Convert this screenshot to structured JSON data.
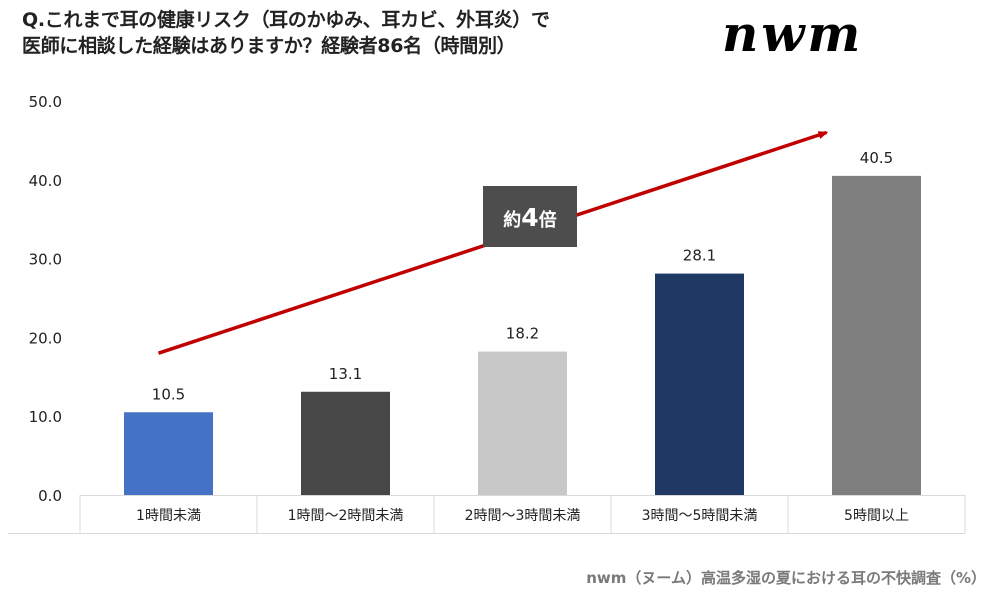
{
  "header": {
    "title_line1": "Q.これまで耳の健康リスク（耳のかゆみ、耳カビ、外耳炎）で",
    "title_line2": "医師に相談した経験はありますか？経験者86名（時間別）",
    "logo": "nwm"
  },
  "footer": {
    "source": "nwm（ヌーム）高温多湿の夏における耳の不快調査（%）"
  },
  "chart_data": {
    "type": "bar",
    "title": "Q.これまで耳の健康リスク（耳のかゆみ、耳カビ、外耳炎）で医師に相談した経験はありますか？経験者86名（時間別）",
    "xlabel": "",
    "ylabel": "",
    "unit": "%",
    "categories": [
      "1時間未満",
      "1時間〜2時間未満",
      "2時間〜3時間未満",
      "3時間〜5時間未満",
      "5時間以上"
    ],
    "values": [
      10.5,
      13.1,
      18.2,
      28.1,
      40.5
    ],
    "value_labels": [
      "10.5",
      "13.1",
      "18.2",
      "28.1",
      "40.5"
    ],
    "bar_colors": [
      "#4472c4",
      "#474747",
      "#c8c8c8",
      "#203864",
      "#7f7f7f"
    ],
    "ylim": [
      0,
      50
    ],
    "yticks": [
      0,
      10,
      20,
      30,
      40,
      50
    ],
    "ytick_labels": [
      "0.0",
      "10.0",
      "20.0",
      "30.0",
      "40.0",
      "50.0"
    ],
    "grid": false,
    "legend": "none",
    "annotations": [
      {
        "type": "trend-arrow",
        "from_category": 0,
        "from_value": 18,
        "to_category": 4,
        "to_value": 46,
        "color": "#c00000"
      },
      {
        "type": "callout",
        "text_prefix": "約",
        "text_number": "4",
        "text_suffix": "倍",
        "background": "#4d4d4d"
      }
    ]
  }
}
